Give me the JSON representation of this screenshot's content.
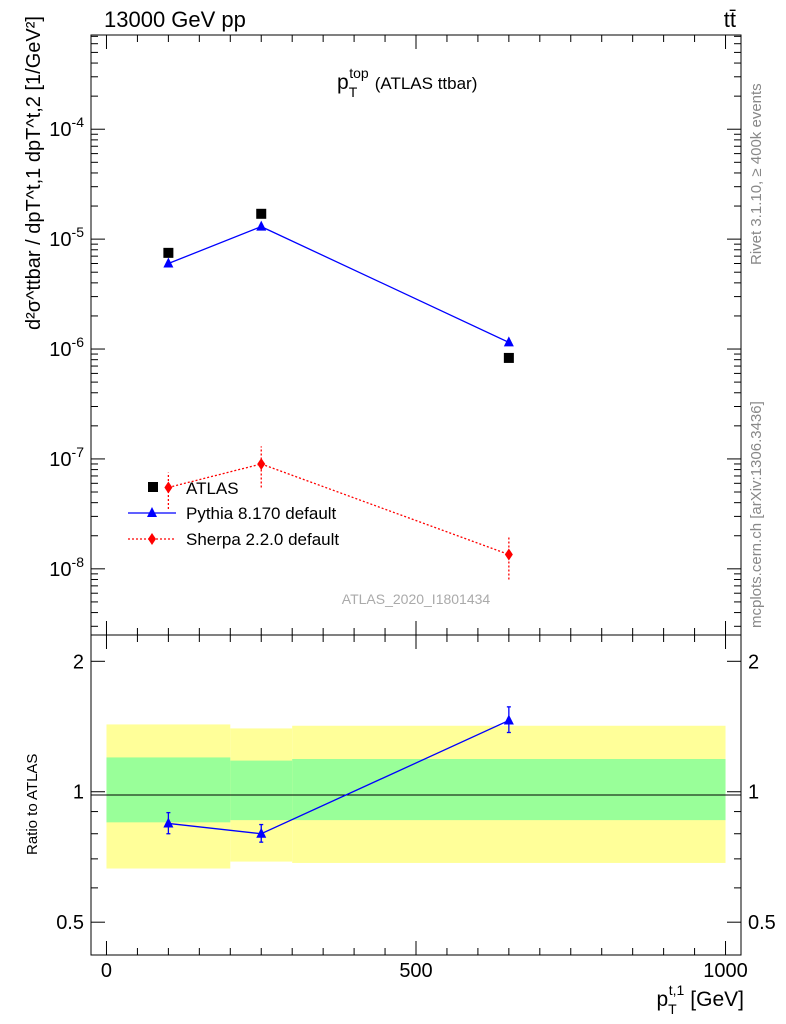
{
  "header": {
    "energy": "13000 GeV pp",
    "process": "tt̄"
  },
  "side": {
    "rivet": "Rivet 3.1.10, ≥ 400k events",
    "site": "mcplots.cern.ch [arXiv:1306.3436]"
  },
  "colors": {
    "data": "#000000",
    "pythia": "#0000ff",
    "sherpa": "#ff0000",
    "band_inner": "#99ff99",
    "band_outer": "#ffff99"
  },
  "chart_data": [
    {
      "type": "scatter",
      "title": "p_T^top (ATLAS ttbar)",
      "title_main": "p",
      "title_sub": "T",
      "title_sup": "top",
      "title_tail": "(ATLAS ttbar)",
      "ylabel": "d²σ^ttbar / dpT^t,1 dpT^t,2 [1/GeV²]",
      "yscale": "log",
      "ylim": [
        2.5e-09,
        0.00072
      ],
      "xlim": [
        -25,
        1025
      ],
      "ytick_labels": [
        "10^-8",
        "10^-7",
        "10^-6",
        "10^-5",
        "10^-4"
      ],
      "analysis_label": "ATLAS_2020_I1801434",
      "legend_position": "bottom-left",
      "legend": [
        "ATLAS",
        "Pythia 8.170 default",
        "Sherpa 2.2.0 default"
      ],
      "series": [
        {
          "name": "ATLAS",
          "style": "square-marker",
          "x": [
            100,
            250,
            650
          ],
          "y": [
            7.5e-06,
            1.7e-05,
            8.3e-07
          ]
        },
        {
          "name": "Pythia 8.170 default",
          "style": "solid-line-triangle",
          "x": [
            100,
            250,
            650
          ],
          "y": [
            6e-06,
            1.3e-05,
            1.15e-06
          ]
        },
        {
          "name": "Sherpa 2.2.0 default",
          "style": "dotted-line-diamond",
          "x": [
            100,
            250,
            650
          ],
          "y": [
            5.5e-08,
            9e-08,
            1.35e-08
          ],
          "yerr_low": [
            2e-08,
            3.5e-08,
            5.5e-09
          ],
          "yerr_high": [
            2e-08,
            4e-08,
            6e-09
          ]
        }
      ],
      "data_marker_outside": {
        "x": 75,
        "y": 5e-08
      }
    },
    {
      "type": "line",
      "ylabel": "Ratio to ATLAS",
      "xlabel": "p_T^t,1 [GeV]",
      "xlabel_main": "p",
      "xlabel_sub": "T",
      "xlabel_sup": "t,1",
      "xlabel_unit": "[GeV]",
      "yscale": "log",
      "ylim": [
        0.42,
        2.3
      ],
      "xlim": [
        -25,
        1025
      ],
      "xtick_labels": [
        "0",
        "500",
        "1000"
      ],
      "xtick_values": [
        0,
        500,
        1000
      ],
      "ytick_labels": [
        "0.5",
        "1",
        "2"
      ],
      "ytick_values": [
        0.5,
        1,
        2
      ],
      "bands": [
        {
          "x_low": 0,
          "x_high": 200,
          "inner": [
            0.85,
            1.2
          ],
          "outer": [
            0.665,
            1.43
          ]
        },
        {
          "x_low": 200,
          "x_high": 300,
          "inner": [
            0.86,
            1.18
          ],
          "outer": [
            0.69,
            1.4
          ]
        },
        {
          "x_low": 300,
          "x_high": 1000,
          "inner": [
            0.86,
            1.19
          ],
          "outer": [
            0.685,
            1.42
          ]
        }
      ],
      "series": [
        {
          "name": "Pythia 8.170 default",
          "x": [
            100,
            250,
            650
          ],
          "y": [
            0.845,
            0.8,
            1.46
          ],
          "yerr_low": [
            0.045,
            0.035,
            0.09
          ],
          "yerr_high": [
            0.05,
            0.04,
            0.11
          ]
        }
      ]
    }
  ]
}
